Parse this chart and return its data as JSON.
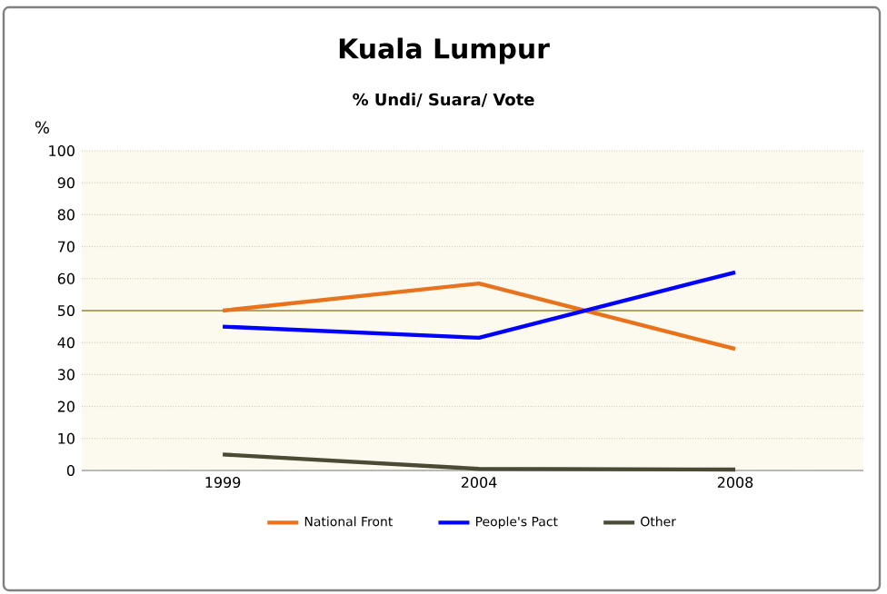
{
  "chart_data": {
    "type": "line",
    "title": "Kuala Lumpur",
    "subtitle": "% Undi/ Suara/ Vote",
    "ylabel": "%",
    "categories": [
      "1999",
      "2004",
      "2008"
    ],
    "series": [
      {
        "name": "National Front",
        "color": "#e8731c",
        "values": [
          50,
          58.5,
          38
        ]
      },
      {
        "name": "People's Pact",
        "color": "#0000ff",
        "values": [
          45,
          41.5,
          62
        ]
      },
      {
        "name": "Other",
        "color": "#4a4a35",
        "values": [
          5,
          0.5,
          0.3
        ]
      }
    ],
    "ylim": [
      0,
      100
    ],
    "yticks": [
      0,
      10,
      20,
      30,
      40,
      50,
      60,
      70,
      80,
      90,
      100
    ],
    "grid": "y",
    "legend": "bottom",
    "marker": "none",
    "line_style": "solid",
    "ref_lines": [
      {
        "axis": "y",
        "value": 50,
        "color": "#9a8a40"
      }
    ]
  }
}
